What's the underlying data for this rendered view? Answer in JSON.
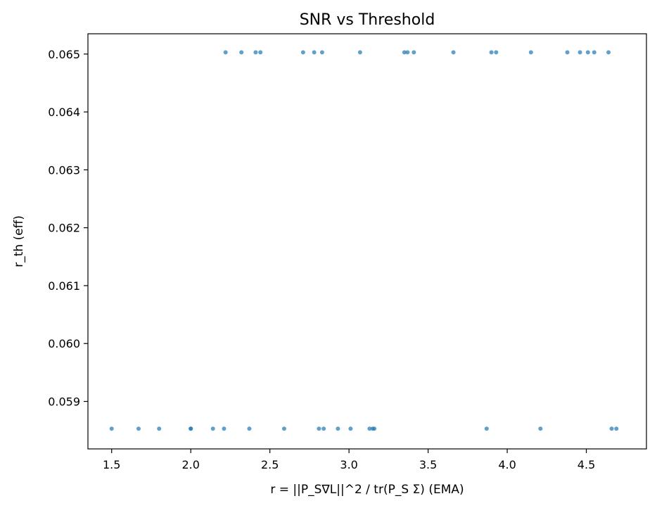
{
  "chart_data": {
    "type": "scatter",
    "title": "SNR vs Threshold",
    "xlabel": "r = ||P_S∇L||^2 / tr(P_S Σ) (EMA)",
    "ylabel": "r_th (eff)",
    "xlim": [
      1.35,
      4.88
    ],
    "ylim": [
      0.05818,
      0.06535
    ],
    "xticks": [
      1.5,
      2.0,
      2.5,
      3.0,
      3.5,
      4.0,
      4.5
    ],
    "xtick_labels": [
      "1.5",
      "2.0",
      "2.5",
      "3.0",
      "3.5",
      "4.0",
      "4.5"
    ],
    "yticks": [
      0.059,
      0.06,
      0.061,
      0.062,
      0.063,
      0.064,
      0.065
    ],
    "ytick_labels": [
      "0.059",
      "0.060",
      "0.061",
      "0.062",
      "0.063",
      "0.064",
      "0.065"
    ],
    "grid": false,
    "marker_color": "#1f77b4",
    "series": [
      {
        "points": [
          [
            2.22,
            0.06503
          ],
          [
            2.32,
            0.06503
          ],
          [
            2.41,
            0.06503
          ],
          [
            2.44,
            0.06503
          ],
          [
            2.71,
            0.06503
          ],
          [
            2.78,
            0.06503
          ],
          [
            2.83,
            0.06503
          ],
          [
            3.07,
            0.06503
          ],
          [
            3.35,
            0.06503
          ],
          [
            3.37,
            0.06503
          ],
          [
            3.41,
            0.06503
          ],
          [
            3.66,
            0.06503
          ],
          [
            3.9,
            0.06503
          ],
          [
            3.93,
            0.06503
          ],
          [
            4.15,
            0.06503
          ],
          [
            4.38,
            0.06503
          ],
          [
            4.46,
            0.06503
          ],
          [
            4.51,
            0.06503
          ],
          [
            4.55,
            0.06503
          ],
          [
            4.64,
            0.06503
          ],
          [
            1.5,
            0.05853
          ],
          [
            1.67,
            0.05853
          ],
          [
            1.8,
            0.05853
          ],
          [
            2.0,
            0.05853
          ],
          [
            2.0,
            0.05853
          ],
          [
            2.14,
            0.05853
          ],
          [
            2.21,
            0.05853
          ],
          [
            2.37,
            0.05853
          ],
          [
            2.59,
            0.05853
          ],
          [
            2.81,
            0.05853
          ],
          [
            2.84,
            0.05853
          ],
          [
            2.93,
            0.05853
          ],
          [
            3.01,
            0.05853
          ],
          [
            3.13,
            0.05853
          ],
          [
            3.15,
            0.05853
          ],
          [
            3.16,
            0.05853
          ],
          [
            3.87,
            0.05853
          ],
          [
            4.21,
            0.05853
          ],
          [
            4.66,
            0.05853
          ],
          [
            4.69,
            0.05853
          ]
        ]
      }
    ]
  }
}
